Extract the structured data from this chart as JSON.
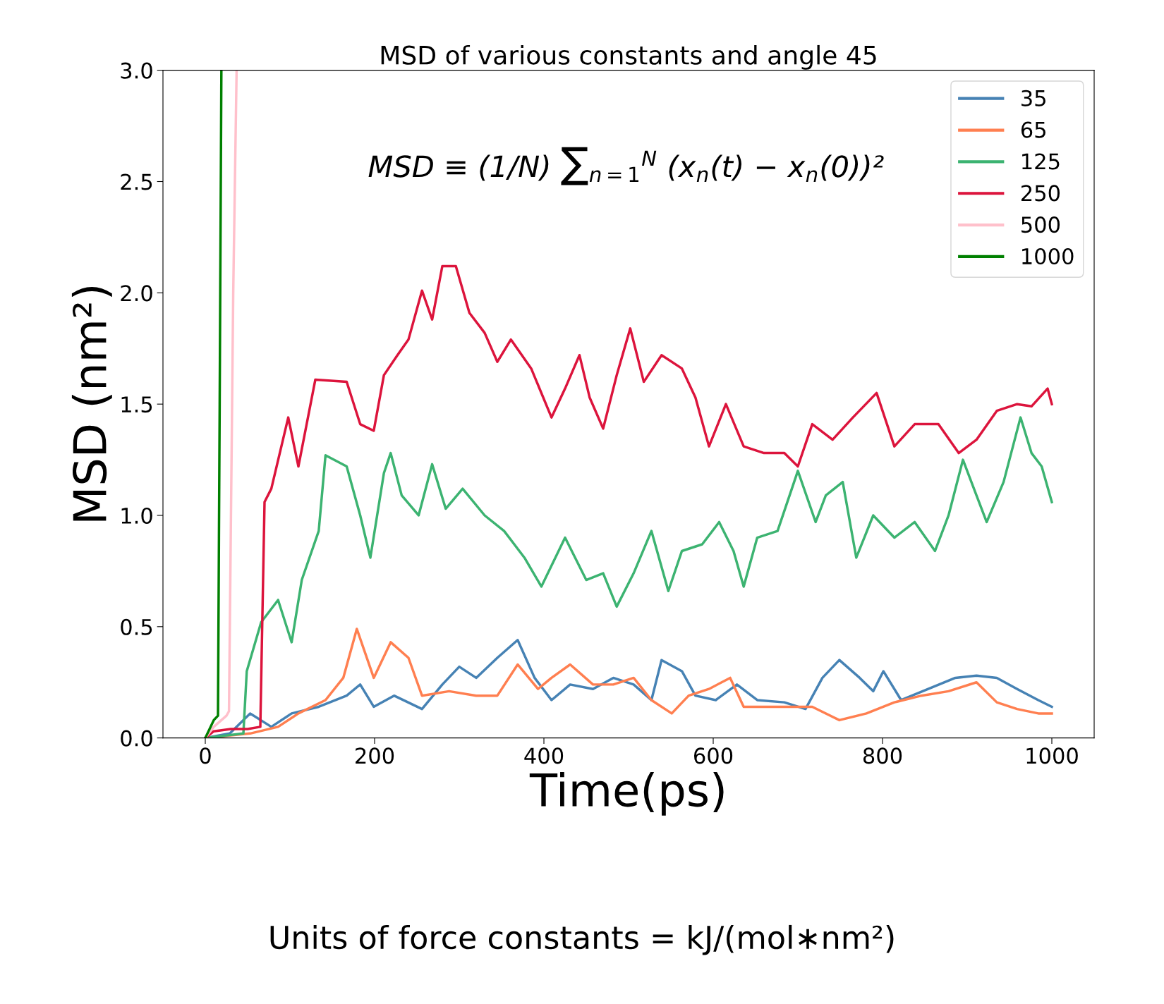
{
  "chart_data": {
    "type": "line",
    "title": "MSD of various constants and angle 45",
    "xlabel": "Time(ps)",
    "ylabel": "MSD (nm²)",
    "xlim": [
      -50,
      1050
    ],
    "xticks": [
      0,
      200,
      400,
      600,
      800,
      1000
    ],
    "ylim": [
      0,
      3.0
    ],
    "yticks": [
      {
        "value": 0,
        "label": "0.0"
      },
      {
        "value": 0.5,
        "label": "0.5"
      },
      {
        "value": 1.0,
        "label": "1.0"
      },
      {
        "value": 1.5,
        "label": "1.5"
      },
      {
        "value": 2.0,
        "label": "2.0"
      },
      {
        "value": 2.5,
        "label": "2.5"
      },
      {
        "value": 3.0,
        "label": "3.0"
      }
    ],
    "grid": false,
    "legend": "top right",
    "marker": "none",
    "line_style": "solid",
    "annotations": [
      "MSD ≡ (1/N) ∑$_{n=1}$$^{N}$ (x$_{n}$(t) − x$_{n}$(0))²",
      "Units of force constants = kJ/(mol∗nm²)"
    ],
    "series": [
      {
        "name": "35",
        "color": "#4682b4",
        "x": [
          0,
          29,
          53,
          78,
          102,
          134,
          167,
          183,
          199,
          223,
          256,
          280,
          300,
          320,
          345,
          369,
          389,
          409,
          431,
          458,
          482,
          506,
          527,
          539,
          563,
          579,
          603,
          628,
          652,
          684,
          709,
          729,
          749,
          773,
          789,
          801,
          822,
          854,
          886,
          911,
          935,
          959,
          984,
          1000
        ],
        "values": [
          0,
          0.02,
          0.11,
          0.05,
          0.11,
          0.14,
          0.19,
          0.24,
          0.14,
          0.19,
          0.13,
          0.24,
          0.32,
          0.27,
          0.36,
          0.44,
          0.27,
          0.17,
          0.24,
          0.22,
          0.27,
          0.24,
          0.17,
          0.35,
          0.3,
          0.19,
          0.17,
          0.24,
          0.17,
          0.16,
          0.13,
          0.27,
          0.35,
          0.27,
          0.21,
          0.3,
          0.17,
          0.22,
          0.27,
          0.28,
          0.27,
          0.22,
          0.17,
          0.14
        ]
      },
      {
        "name": "65",
        "color": "#ff7f50",
        "x": [
          0,
          53,
          86,
          110,
          142,
          163,
          179,
          199,
          219,
          240,
          256,
          288,
          320,
          345,
          369,
          393,
          409,
          431,
          458,
          482,
          506,
          527,
          551,
          571,
          595,
          620,
          636,
          660,
          692,
          717,
          749,
          781,
          814,
          846,
          878,
          911,
          935,
          959,
          984,
          1000
        ],
        "values": [
          0,
          0.02,
          0.05,
          0.11,
          0.17,
          0.27,
          0.49,
          0.27,
          0.43,
          0.36,
          0.19,
          0.21,
          0.19,
          0.19,
          0.33,
          0.22,
          0.27,
          0.33,
          0.24,
          0.24,
          0.27,
          0.17,
          0.11,
          0.19,
          0.22,
          0.27,
          0.14,
          0.14,
          0.14,
          0.14,
          0.08,
          0.11,
          0.16,
          0.19,
          0.21,
          0.25,
          0.16,
          0.13,
          0.11,
          0.11
        ]
      },
      {
        "name": "125",
        "color": "#3cb371",
        "x": [
          0,
          45,
          49,
          66,
          86,
          102,
          114,
          134,
          142,
          167,
          183,
          195,
          211,
          219,
          232,
          252,
          268,
          284,
          304,
          330,
          353,
          377,
          397,
          425,
          450,
          470,
          486,
          506,
          527,
          547,
          563,
          587,
          607,
          624,
          636,
          652,
          676,
          700,
          721,
          733,
          753,
          769,
          789,
          814,
          838,
          862,
          878,
          895,
          911,
          923,
          943,
          963,
          976,
          988,
          1000
        ],
        "values": [
          0,
          0.02,
          0.3,
          0.52,
          0.62,
          0.43,
          0.71,
          0.93,
          1.27,
          1.22,
          1.0,
          0.81,
          1.19,
          1.28,
          1.09,
          1.0,
          1.23,
          1.03,
          1.12,
          1.0,
          0.93,
          0.81,
          0.68,
          0.9,
          0.71,
          0.74,
          0.59,
          0.74,
          0.93,
          0.66,
          0.84,
          0.87,
          0.97,
          0.84,
          0.68,
          0.9,
          0.93,
          1.2,
          0.97,
          1.09,
          1.15,
          0.81,
          1.0,
          0.9,
          0.97,
          0.84,
          1.0,
          1.25,
          1.09,
          0.97,
          1.15,
          1.44,
          1.28,
          1.22,
          1.06
        ]
      },
      {
        "name": "250",
        "color": "#dc143c",
        "x": [
          0,
          10,
          30,
          50,
          65,
          70,
          78,
          98,
          110,
          130,
          167,
          183,
          199,
          211,
          227,
          240,
          256,
          268,
          280,
          296,
          312,
          330,
          345,
          361,
          385,
          409,
          425,
          442,
          454,
          470,
          486,
          502,
          518,
          539,
          563,
          579,
          595,
          615,
          636,
          660,
          684,
          700,
          717,
          741,
          765,
          793,
          814,
          838,
          866,
          890,
          911,
          935,
          959,
          976,
          995,
          1000
        ],
        "values": [
          0,
          0.03,
          0.04,
          0.04,
          0.05,
          1.06,
          1.12,
          1.44,
          1.22,
          1.61,
          1.6,
          1.41,
          1.38,
          1.63,
          1.72,
          1.79,
          2.01,
          1.88,
          2.12,
          2.12,
          1.91,
          1.82,
          1.69,
          1.79,
          1.66,
          1.44,
          1.57,
          1.72,
          1.53,
          1.39,
          1.63,
          1.84,
          1.6,
          1.72,
          1.66,
          1.53,
          1.31,
          1.5,
          1.31,
          1.28,
          1.28,
          1.22,
          1.41,
          1.34,
          1.44,
          1.55,
          1.31,
          1.41,
          1.41,
          1.28,
          1.34,
          1.47,
          1.5,
          1.49,
          1.57,
          1.5
        ]
      },
      {
        "name": "500",
        "color": "#ffc0cb",
        "x": [
          0,
          10,
          25,
          28,
          33,
          37
        ],
        "values": [
          0,
          0.05,
          0.1,
          0.12,
          2.0,
          3.0
        ]
      },
      {
        "name": "1000",
        "color": "#008000",
        "x": [
          0,
          10,
          15,
          17,
          19
        ],
        "values": [
          0,
          0.08,
          0.1,
          1.5,
          3.0
        ]
      }
    ]
  }
}
